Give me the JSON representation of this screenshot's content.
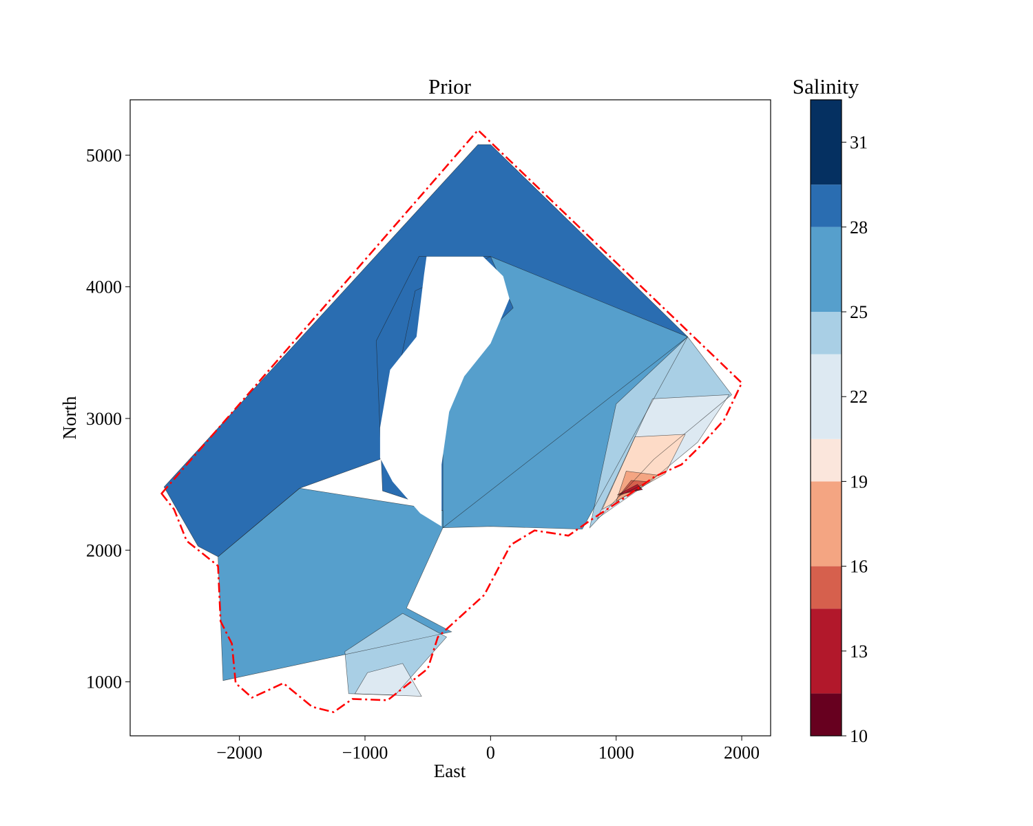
{
  "chart_data": [
    {
      "type": "contour",
      "title": "Prior",
      "xlabel": "East",
      "ylabel": "North",
      "xlim": [
        -2870,
        2230
      ],
      "ylim": [
        590,
        5420
      ],
      "xticks": [
        -2000,
        -1000,
        0,
        1000,
        2000
      ],
      "yticks": [
        1000,
        2000,
        3000,
        4000,
        5000
      ],
      "xtick_labels": [
        "−2000",
        "−1000",
        "0",
        "1000",
        "2000"
      ],
      "ytick_labels": [
        "1000",
        "2000",
        "3000",
        "4000",
        "5000"
      ],
      "grid": false,
      "colormap": "RdBu",
      "contour_levels": [
        10.0,
        11.6,
        13.3,
        14.9,
        16.5,
        18.2,
        19.8,
        21.4,
        23.1,
        24.7,
        26.4,
        28.0,
        29.6,
        32.0
      ],
      "level_colors": [
        "#67001f",
        "#b2182b",
        "#d6604d",
        "#f4a582",
        "#fddbc7",
        "#f7f7f7",
        "#dde9f2",
        "#a9cfe5",
        "#569fcc",
        "#569fcc",
        "#2a6db1",
        "#2a6db1",
        "#053061"
      ],
      "regions": [
        {
          "salinity": 28.5,
          "color": "#2a6db1",
          "polygon": [
            [
              -2600,
              2480
            ],
            [
              -100,
              5080
            ],
            [
              0,
              5080
            ],
            [
              1570,
              3620
            ],
            [
              -380,
              2170
            ],
            [
              -380,
              2300
            ],
            [
              -860,
              2450
            ],
            [
              -910,
              3590
            ],
            [
              -570,
              4230
            ],
            [
              0,
              4230
            ],
            [
              -600,
              3970
            ],
            [
              -880,
              2690
            ],
            [
              -1520,
              2470
            ],
            [
              -2170,
              1950
            ],
            [
              -2330,
              2030
            ]
          ]
        },
        {
          "salinity": 26.5,
          "color": "#569fcc",
          "polygon": [
            [
              -2170,
              1950
            ],
            [
              -1520,
              2470
            ],
            [
              -380,
              2300
            ],
            [
              -380,
              2170
            ],
            [
              0,
              2180
            ],
            [
              730,
              2160
            ],
            [
              1570,
              3620
            ],
            [
              0,
              4230
            ],
            [
              180,
              3840
            ],
            [
              -520,
              3210
            ],
            [
              -380,
              2780
            ],
            [
              -380,
              2170
            ],
            [
              -670,
              1560
            ],
            [
              -310,
              1380
            ],
            [
              -2130,
              1010
            ]
          ]
        },
        {
          "salinity": 24.0,
          "color": "#a9cfe5",
          "polygon": [
            [
              -1130,
              910
            ],
            [
              -1160,
              1230
            ],
            [
              -700,
              1520
            ],
            [
              -350,
              1340
            ],
            [
              -760,
              900
            ]
          ]
        },
        {
          "salinity": 24.0,
          "color": "#a9cfe5",
          "polygon": [
            [
              790,
              2170
            ],
            [
              1000,
              3110
            ],
            [
              1570,
              3620
            ],
            [
              1920,
              3180
            ],
            [
              1300,
              2690
            ]
          ]
        },
        {
          "salinity": 22.0,
          "color": "#dde9f2",
          "polygon": [
            [
              850,
              2240
            ],
            [
              1290,
              3150
            ],
            [
              1900,
              3180
            ],
            [
              1650,
              2820
            ],
            [
              1270,
              2520
            ]
          ]
        },
        {
          "salinity": 22.0,
          "color": "#dde9f2",
          "polygon": [
            [
              -1080,
              910
            ],
            [
              -980,
              1070
            ],
            [
              -700,
              1140
            ],
            [
              -550,
              890
            ]
          ]
        },
        {
          "salinity": 19.5,
          "color": "#fddbc7",
          "polygon": [
            [
              890,
              2310
            ],
            [
              1150,
              2860
            ],
            [
              1550,
              2880
            ],
            [
              1390,
              2580
            ]
          ]
        },
        {
          "salinity": 17.0,
          "color": "#f4a582",
          "polygon": [
            [
              1000,
              2370
            ],
            [
              1080,
              2600
            ],
            [
              1330,
              2570
            ],
            [
              1180,
              2470
            ]
          ]
        },
        {
          "salinity": 14.5,
          "color": "#d6604d",
          "polygon": [
            [
              1020,
              2410
            ],
            [
              1120,
              2530
            ],
            [
              1260,
              2520
            ]
          ]
        },
        {
          "salinity": 12.0,
          "color": "#b2182b",
          "polygon": [
            [
              1010,
              2420
            ],
            [
              1170,
              2500
            ],
            [
              1210,
              2460
            ]
          ]
        }
      ],
      "island": {
        "polygon": [
          [
            -510,
            4230
          ],
          [
            -530,
            4090
          ],
          [
            -590,
            3620
          ],
          [
            -800,
            3370
          ],
          [
            -880,
            2930
          ],
          [
            -880,
            2700
          ],
          [
            -780,
            2520
          ],
          [
            -560,
            2280
          ],
          [
            -390,
            2180
          ],
          [
            -390,
            2650
          ],
          [
            -330,
            3050
          ],
          [
            -210,
            3320
          ],
          [
            0,
            3570
          ],
          [
            150,
            3910
          ],
          [
            100,
            4080
          ],
          [
            -60,
            4230
          ]
        ]
      },
      "boundary": {
        "style": "dash-dot",
        "color": "#ff0000",
        "polygon": [
          [
            -2620,
            2430
          ],
          [
            -100,
            5190
          ],
          [
            2000,
            3270
          ],
          [
            1860,
            2990
          ],
          [
            1680,
            2800
          ],
          [
            1520,
            2650
          ],
          [
            1310,
            2560
          ],
          [
            1070,
            2400
          ],
          [
            800,
            2230
          ],
          [
            620,
            2110
          ],
          [
            350,
            2150
          ],
          [
            160,
            2040
          ],
          [
            -50,
            1660
          ],
          [
            -420,
            1340
          ],
          [
            -500,
            1100
          ],
          [
            -820,
            860
          ],
          [
            -1100,
            870
          ],
          [
            -1250,
            770
          ],
          [
            -1420,
            810
          ],
          [
            -1650,
            990
          ],
          [
            -1900,
            880
          ],
          [
            -2030,
            990
          ],
          [
            -2060,
            1290
          ],
          [
            -2150,
            1460
          ],
          [
            -2170,
            1880
          ],
          [
            -2300,
            1980
          ],
          [
            -2420,
            2070
          ],
          [
            -2520,
            2310
          ]
        ]
      },
      "colorbar": {
        "label": "Salinity",
        "ticks": [
          10,
          13,
          16,
          19,
          22,
          25,
          28,
          31
        ],
        "tick_labels": [
          "10",
          "13",
          "16",
          "19",
          "22",
          "25",
          "28",
          "31"
        ],
        "range": [
          10,
          32.5
        ],
        "bands": [
          {
            "from": 10.0,
            "to": 11.5,
            "color": "#67001f"
          },
          {
            "from": 11.5,
            "to": 14.5,
            "color": "#b2182b"
          },
          {
            "from": 14.5,
            "to": 16.0,
            "color": "#d6604d"
          },
          {
            "from": 16.0,
            "to": 19.0,
            "color": "#f4a582"
          },
          {
            "from": 19.0,
            "to": 20.5,
            "color": "#fbe6dc"
          },
          {
            "from": 20.5,
            "to": 23.5,
            "color": "#dde9f2"
          },
          {
            "from": 23.5,
            "to": 25.0,
            "color": "#a9cfe5"
          },
          {
            "from": 25.0,
            "to": 28.0,
            "color": "#569fcc"
          },
          {
            "from": 28.0,
            "to": 29.5,
            "color": "#2a6db1"
          },
          {
            "from": 29.5,
            "to": 32.5,
            "color": "#053061"
          }
        ]
      }
    }
  ]
}
